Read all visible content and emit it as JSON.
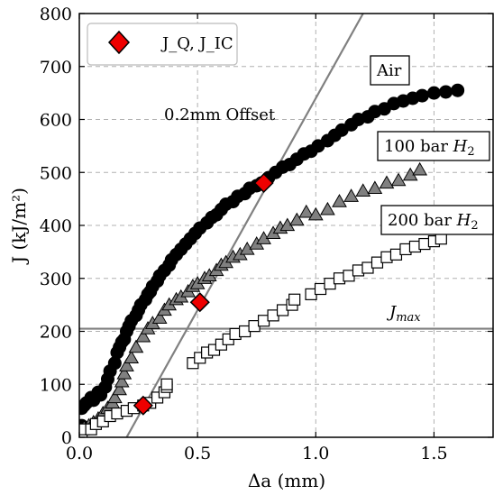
{
  "chart_data": {
    "type": "scatter",
    "xlabel": "Δa (mm)",
    "ylabel": "J (kJ/m²)",
    "xlim": [
      0,
      1.75
    ],
    "ylim": [
      0,
      800
    ],
    "xticks": [
      "0.0",
      "0.5",
      "1.0",
      "1.5"
    ],
    "xtick_values": [
      0,
      0.5,
      1.0,
      1.5
    ],
    "yticks": [
      "0",
      "100",
      "200",
      "300",
      "400",
      "500",
      "600",
      "700",
      "800"
    ],
    "ytick_values": [
      0,
      100,
      200,
      300,
      400,
      500,
      600,
      700,
      800
    ],
    "grid": true,
    "legend_position": "top-left",
    "legend": {
      "label": "J_Q, J_IC"
    },
    "colors": {
      "air": "#000000",
      "h2_100": "#808080",
      "h2_200": "#ffffff",
      "marker_edge": "#000000",
      "jq": "#ee0000",
      "lines": "#808080",
      "grid": "#b0b0b0"
    },
    "annotations": {
      "offset": "0.2mm Offset",
      "air": "Air",
      "h2_100_prefix": "100 bar",
      "h2_200_prefix": "200 bar",
      "h2_suffix": "H",
      "h2_sub": "2",
      "jmax": "J",
      "jmax_sub": "max"
    },
    "offset_line": {
      "slope": 800,
      "x_intercept": 0.2
    },
    "jmax_line": {
      "y": 205
    },
    "series": [
      {
        "marker": "circle",
        "points": [
          [
            0.01,
            22
          ],
          [
            0.01,
            55
          ],
          [
            0.02,
            60
          ],
          [
            0.03,
            65
          ],
          [
            0.05,
            75
          ],
          [
            0.06,
            70
          ],
          [
            0.08,
            85
          ],
          [
            0.09,
            80
          ],
          [
            0.11,
            95
          ],
          [
            0.12,
            110
          ],
          [
            0.13,
            125
          ],
          [
            0.15,
            140
          ],
          [
            0.16,
            160
          ],
          [
            0.17,
            170
          ],
          [
            0.18,
            180
          ],
          [
            0.19,
            185
          ],
          [
            0.2,
            200
          ],
          [
            0.21,
            210
          ],
          [
            0.22,
            220
          ],
          [
            0.24,
            230
          ],
          [
            0.25,
            240
          ],
          [
            0.26,
            250
          ],
          [
            0.28,
            260
          ],
          [
            0.29,
            270
          ],
          [
            0.3,
            275
          ],
          [
            0.31,
            285
          ],
          [
            0.33,
            295
          ],
          [
            0.34,
            305
          ],
          [
            0.36,
            315
          ],
          [
            0.38,
            325
          ],
          [
            0.39,
            335
          ],
          [
            0.41,
            345
          ],
          [
            0.43,
            355
          ],
          [
            0.45,
            365
          ],
          [
            0.47,
            375
          ],
          [
            0.49,
            385
          ],
          [
            0.51,
            395
          ],
          [
            0.54,
            405
          ],
          [
            0.56,
            415
          ],
          [
            0.58,
            420
          ],
          [
            0.6,
            430
          ],
          [
            0.62,
            440
          ],
          [
            0.65,
            445
          ],
          [
            0.67,
            455
          ],
          [
            0.7,
            460
          ],
          [
            0.72,
            470
          ],
          [
            0.75,
            475
          ],
          [
            0.77,
            480
          ],
          [
            0.8,
            490
          ],
          [
            0.83,
            500
          ],
          [
            0.86,
            510
          ],
          [
            0.89,
            515
          ],
          [
            0.92,
            525
          ],
          [
            0.95,
            535
          ],
          [
            0.98,
            540
          ],
          [
            1.01,
            550
          ],
          [
            1.05,
            560
          ],
          [
            1.08,
            570
          ],
          [
            1.11,
            580
          ],
          [
            1.15,
            590
          ],
          [
            1.18,
            600
          ],
          [
            1.22,
            605
          ],
          [
            1.25,
            615
          ],
          [
            1.29,
            620
          ],
          [
            1.33,
            630
          ],
          [
            1.37,
            635
          ],
          [
            1.41,
            640
          ],
          [
            1.45,
            645
          ],
          [
            1.5,
            650
          ],
          [
            1.55,
            652
          ],
          [
            1.6,
            655
          ]
        ]
      },
      {
        "marker": "triangle",
        "points": [
          [
            0.02,
            18
          ],
          [
            0.04,
            22
          ],
          [
            0.06,
            28
          ],
          [
            0.08,
            35
          ],
          [
            0.1,
            45
          ],
          [
            0.12,
            55
          ],
          [
            0.14,
            65
          ],
          [
            0.15,
            75
          ],
          [
            0.17,
            90
          ],
          [
            0.18,
            105
          ],
          [
            0.19,
            120
          ],
          [
            0.2,
            135
          ],
          [
            0.22,
            150
          ],
          [
            0.24,
            170
          ],
          [
            0.27,
            190
          ],
          [
            0.29,
            205
          ],
          [
            0.31,
            215
          ],
          [
            0.34,
            225
          ],
          [
            0.36,
            240
          ],
          [
            0.38,
            250
          ],
          [
            0.41,
            260
          ],
          [
            0.43,
            265
          ],
          [
            0.46,
            275
          ],
          [
            0.48,
            285
          ],
          [
            0.5,
            290
          ],
          [
            0.53,
            300
          ],
          [
            0.55,
            305
          ],
          [
            0.58,
            315
          ],
          [
            0.6,
            325
          ],
          [
            0.62,
            330
          ],
          [
            0.65,
            340
          ],
          [
            0.68,
            345
          ],
          [
            0.71,
            355
          ],
          [
            0.75,
            365
          ],
          [
            0.78,
            375
          ],
          [
            0.82,
            385
          ],
          [
            0.85,
            395
          ],
          [
            0.88,
            400
          ],
          [
            0.92,
            410
          ],
          [
            0.96,
            425
          ],
          [
            1.0,
            420
          ],
          [
            1.05,
            430
          ],
          [
            1.1,
            445
          ],
          [
            1.15,
            455
          ],
          [
            1.2,
            465
          ],
          [
            1.25,
            470
          ],
          [
            1.3,
            480
          ],
          [
            1.35,
            485
          ],
          [
            1.4,
            495
          ],
          [
            1.44,
            505
          ]
        ]
      },
      {
        "marker": "square",
        "points": [
          [
            0.01,
            10
          ],
          [
            0.02,
            15
          ],
          [
            0.05,
            15
          ],
          [
            0.07,
            25
          ],
          [
            0.1,
            30
          ],
          [
            0.13,
            40
          ],
          [
            0.16,
            45
          ],
          [
            0.2,
            50
          ],
          [
            0.23,
            55
          ],
          [
            0.27,
            60
          ],
          [
            0.3,
            65
          ],
          [
            0.33,
            75
          ],
          [
            0.36,
            85
          ],
          [
            0.37,
            95
          ],
          [
            0.37,
            100
          ],
          [
            0.48,
            140
          ],
          [
            0.51,
            150
          ],
          [
            0.54,
            160
          ],
          [
            0.57,
            165
          ],
          [
            0.6,
            175
          ],
          [
            0.63,
            185
          ],
          [
            0.66,
            195
          ],
          [
            0.7,
            200
          ],
          [
            0.74,
            210
          ],
          [
            0.78,
            220
          ],
          [
            0.82,
            230
          ],
          [
            0.86,
            240
          ],
          [
            0.9,
            250
          ],
          [
            0.91,
            260
          ],
          [
            0.98,
            270
          ],
          [
            1.02,
            280
          ],
          [
            1.06,
            290
          ],
          [
            1.1,
            300
          ],
          [
            1.14,
            305
          ],
          [
            1.18,
            315
          ],
          [
            1.22,
            320
          ],
          [
            1.26,
            330
          ],
          [
            1.3,
            340
          ],
          [
            1.34,
            345
          ],
          [
            1.38,
            355
          ],
          [
            1.42,
            360
          ],
          [
            1.46,
            365
          ],
          [
            1.5,
            370
          ],
          [
            1.53,
            375
          ]
        ]
      }
    ],
    "jq_points": [
      [
        0.27,
        60
      ],
      [
        0.51,
        255
      ],
      [
        0.78,
        480
      ]
    ]
  }
}
